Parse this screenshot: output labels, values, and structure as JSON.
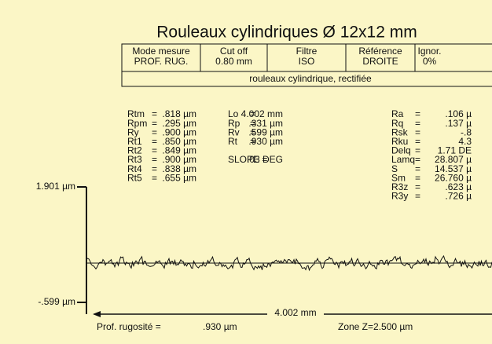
{
  "title": "Rouleaux cylindriques Ø 12x12 mm",
  "table": {
    "columns": [
      [
        "Mode mesure",
        "PROF. RUG."
      ],
      [
        "Cut off",
        "0.80 mm"
      ],
      [
        "Filtre",
        "ISO"
      ],
      [
        "Référence",
        "DROITE"
      ],
      [
        "Ignor.",
        "0%"
      ]
    ],
    "description": "rouleaux cylindrique, rectifiée"
  },
  "params": [
    [
      [
        "Rtm",
        "=",
        ".818 µm"
      ],
      [
        "Rpm",
        "=",
        ".295 µm"
      ],
      [
        "Ry",
        "=",
        ".900 µm"
      ],
      [
        "Rt1",
        "=",
        ".850 µm"
      ],
      [
        "Rt2",
        "=",
        ".849 µm"
      ],
      [
        "Rt3",
        "=",
        ".900 µm"
      ],
      [
        "Rt4",
        "=",
        ".838 µm"
      ],
      [
        "Rt5",
        "=",
        ".655 µm"
      ]
    ],
    [
      [
        "Lo",
        "=",
        "4.002 mm"
      ],
      [
        "Rp",
        "=",
        ".331 µm"
      ],
      [
        "Rv",
        "=",
        ".599 µm"
      ],
      [
        "Rt",
        "=",
        ".930 µm"
      ],
      null,
      [
        "SLOPE =",
        "",
        ".03 DEG"
      ]
    ],
    [
      [
        "Ra",
        "=",
        ".106 µ"
      ],
      [
        "Rq",
        "=",
        ".137 µ"
      ],
      [
        "Rsk",
        "=",
        "-.8"
      ],
      [
        "Rku",
        "=",
        "4.3"
      ],
      [
        "Delq",
        "=",
        "1.71 DE"
      ],
      [
        "Lamq",
        "=",
        "28.807 µ"
      ],
      [
        "S",
        "=",
        "14.537 µ"
      ],
      [
        "Sm",
        "=",
        "26.760 µ"
      ],
      [
        "R3z",
        "=",
        ".623 µ"
      ],
      [
        "R3y",
        "=",
        ".726 µ"
      ]
    ]
  ],
  "graph": {
    "max_label": "1.901 µm",
    "min_label": "-.599 µm",
    "length_label": "4.002 mm"
  },
  "footer": {
    "profile_label": "Prof. rugosité =",
    "profile_value": ".930 µm",
    "zone": "Zone Z=2.500 µm"
  }
}
